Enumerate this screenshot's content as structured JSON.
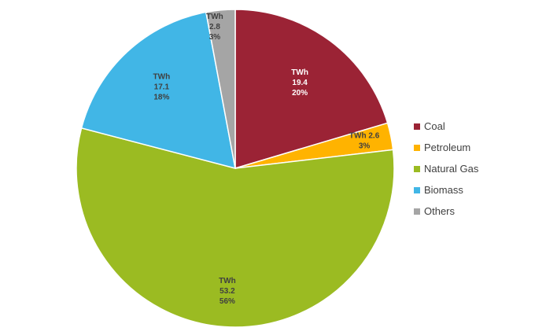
{
  "chart_data": {
    "type": "pie",
    "title": "",
    "unit": "TWh",
    "categories": [
      "Coal",
      "Petroleum",
      "Natural Gas",
      "Biomass",
      "Others"
    ],
    "values": [
      19.4,
      2.6,
      53.2,
      17.1,
      2.8
    ],
    "percents": [
      "20%",
      "3%",
      "56%",
      "18%",
      "3%"
    ],
    "slice_labels": [
      [
        "TWh",
        "19.4",
        "20%"
      ],
      [
        "TWh 2.6",
        "3%"
      ],
      [
        "TWh",
        "53.2",
        "56%"
      ],
      [
        "TWh",
        "17.1",
        "18%"
      ],
      [
        "TWh",
        "2.8",
        "3%"
      ]
    ],
    "colors": [
      "#9B2335",
      "#FFB300",
      "#9BBB22",
      "#41B6E6",
      "#A5A5A5"
    ],
    "label_colors": [
      "#FFFFFF",
      "#404040",
      "#404040",
      "#404040",
      "#404040"
    ],
    "legend_position": "right"
  }
}
